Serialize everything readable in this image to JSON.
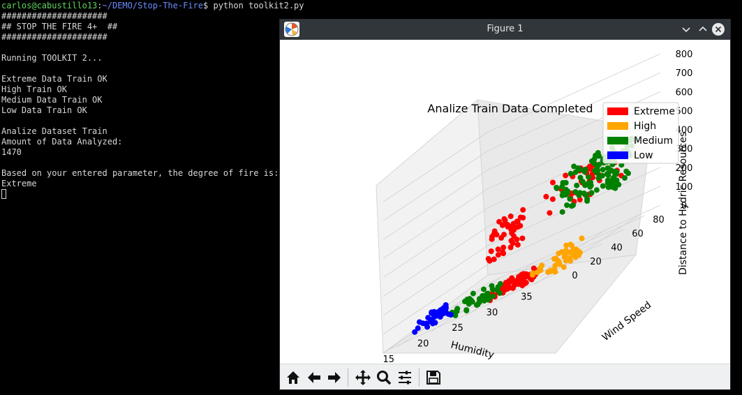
{
  "terminal": {
    "prompt_user": "carlos@cabustillo13",
    "prompt_sep": ":",
    "prompt_path": "~/DEMO/Stop-The-Fire",
    "prompt_command": "$ python toolkit2.py",
    "lines": [
      "#####################",
      "## STOP THE FIRE 4+  ##",
      "#####################",
      "",
      "Running TOOLKIT 2...",
      "",
      "Extreme Data Train OK",
      "High Train OK",
      "Medium Data Train OK",
      "Low Data Train OK",
      "",
      "Analize Dataset Train",
      "Amount of Data Analyzed:",
      "1470",
      "",
      "Based on your entered parameter, the degree of fire is:",
      "Extreme"
    ]
  },
  "figure_window": {
    "title": "Figure 1",
    "controls": [
      "minimize",
      "maximize",
      "close"
    ]
  },
  "toolbar": {
    "buttons": [
      "home-icon",
      "back-arrow-icon",
      "forward-arrow-icon",
      "pan-icon",
      "zoom-icon",
      "configure-subplots-icon",
      "save-icon"
    ]
  },
  "chart_data": {
    "type": "scatter",
    "projection": "3d",
    "title": "Analize Train Data Completed",
    "xlabel": "Humidity",
    "ylabel": "Wind Speed",
    "zlabel": "Distance to Hydric Resources",
    "x_ticks": [
      "15",
      "20",
      "25",
      "30",
      "35"
    ],
    "y_ticks": [
      "0",
      "20",
      "40",
      "60",
      "80"
    ],
    "z_ticks": [
      "0",
      "100",
      "200",
      "300",
      "400",
      "500",
      "600",
      "700",
      "800"
    ],
    "legend_placement": "top-right",
    "grid": true,
    "series": [
      {
        "name": "Extreme",
        "color": "#ff0000",
        "clusters": [
          {
            "x": [
              26,
              32
            ],
            "y": [
              8,
              20
            ],
            "z": [
              0,
              60
            ],
            "n": 70
          },
          {
            "x": [
              24,
              28
            ],
            "y": [
              20,
              35
            ],
            "z": [
              200,
              380
            ],
            "n": 45
          },
          {
            "x": [
              26,
              34
            ],
            "y": [
              60,
              88
            ],
            "z": [
              250,
              420
            ],
            "n": 40
          }
        ]
      },
      {
        "name": "High",
        "color": "#ffa500",
        "clusters": [
          {
            "x": [
              33,
              37
            ],
            "y": [
              0,
              35
            ],
            "z": [
              0,
              100
            ],
            "n": 45
          }
        ]
      },
      {
        "name": "Medium",
        "color": "#008000",
        "clusters": [
          {
            "x": [
              20,
              26
            ],
            "y": [
              10,
              30
            ],
            "z": [
              0,
              60
            ],
            "n": 40
          },
          {
            "x": [
              28,
              36
            ],
            "y": [
              60,
              90
            ],
            "z": [
              230,
              450
            ],
            "n": 110
          }
        ]
      },
      {
        "name": "Low",
        "color": "#0000ff",
        "clusters": [
          {
            "x": [
              14,
              18
            ],
            "y": [
              15,
              35
            ],
            "z": [
              0,
              60
            ],
            "n": 40
          }
        ]
      }
    ]
  }
}
